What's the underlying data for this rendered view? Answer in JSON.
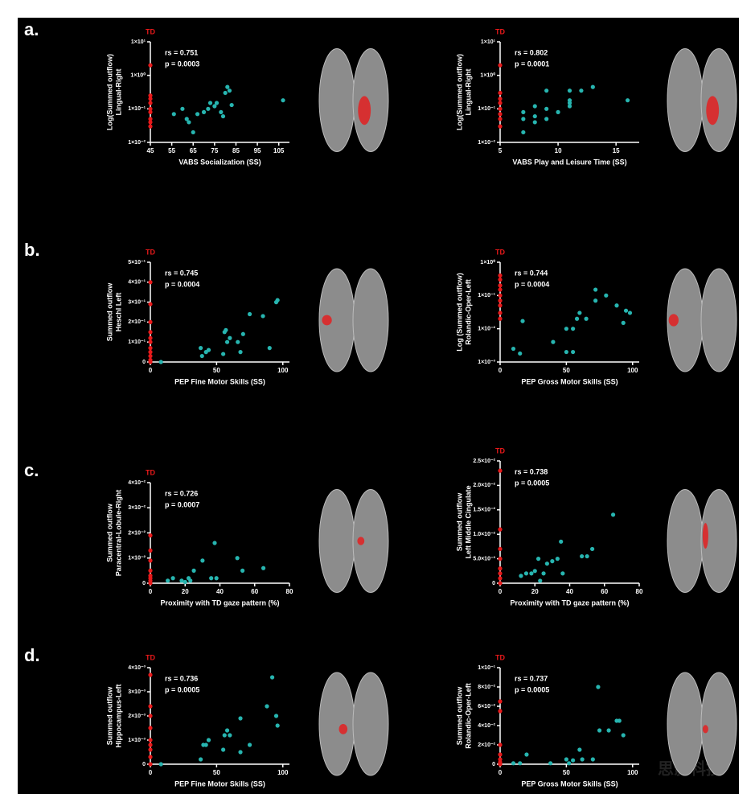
{
  "panel_labels": [
    "a.",
    "b.",
    "c.",
    "d."
  ],
  "watermark": "思影科技",
  "chart_data": [
    {
      "type": "scatter",
      "log_y": true,
      "ylabel": [
        "Log(Summed outflow)",
        "Lingual-Right"
      ],
      "xlabel": "VABS Socialization (SS)",
      "annotations": [
        "rs = 0.751",
        "p = 0.0003"
      ],
      "xlim": [
        45,
        110
      ],
      "xticks": [
        45,
        55,
        65,
        75,
        85,
        95,
        105
      ],
      "ylim": [
        0.01,
        10
      ],
      "yticks": [
        {
          "value": 0.01,
          "label": "1×10⁻²"
        },
        {
          "value": 0.1,
          "label": "1×10⁻¹"
        },
        {
          "value": 1,
          "label": "1×10⁰"
        },
        {
          "value": 10,
          "label": "1×10¹"
        }
      ],
      "series": [
        {
          "name": "TD",
          "color": "#e8191a",
          "x": [
            45,
            45,
            45,
            45,
            45,
            45,
            45,
            45,
            45
          ],
          "values": [
            2,
            0.25,
            0.2,
            0.15,
            0.1,
            0.08,
            0.05,
            0.04,
            0.03
          ]
        },
        {
          "color": "#27b5b0",
          "x": [
            56,
            60,
            62,
            63,
            65,
            67,
            70,
            72,
            73,
            75,
            76,
            78,
            79,
            80,
            81,
            82,
            83,
            107
          ],
          "values": [
            0.07,
            0.1,
            0.05,
            0.04,
            0.02,
            0.07,
            0.08,
            0.1,
            0.15,
            0.12,
            0.15,
            0.08,
            0.06,
            0.3,
            0.45,
            0.35,
            0.13,
            0.18
          ]
        }
      ]
    },
    {
      "type": "scatter",
      "log_y": true,
      "ylabel": [
        "Log(Summed outflow)",
        "Lingual-Right"
      ],
      "xlabel": "VABS Play and Leisure Time (SS)",
      "annotations": [
        "rs = 0.802",
        "p = 0.0001"
      ],
      "xlim": [
        5,
        17
      ],
      "xticks": [
        5,
        10,
        15
      ],
      "ylim": [
        0.01,
        10
      ],
      "yticks": [
        {
          "value": 0.01,
          "label": "1×10⁻²"
        },
        {
          "value": 0.1,
          "label": "1×10⁻¹"
        },
        {
          "value": 1,
          "label": "1×10⁰"
        },
        {
          "value": 10,
          "label": "1×10¹"
        }
      ],
      "series": [
        {
          "name": "TD",
          "color": "#e8191a",
          "x": [
            5,
            5,
            5,
            5,
            5,
            5,
            5,
            5
          ],
          "values": [
            2,
            0.3,
            0.2,
            0.15,
            0.1,
            0.07,
            0.05,
            0.03
          ]
        },
        {
          "color": "#27b5b0",
          "x": [
            7,
            7,
            7,
            8,
            8,
            8,
            9,
            9,
            9,
            10,
            11,
            11,
            11,
            11,
            12,
            13,
            16
          ],
          "values": [
            0.05,
            0.02,
            0.08,
            0.12,
            0.06,
            0.04,
            0.35,
            0.1,
            0.05,
            0.08,
            0.15,
            0.12,
            0.35,
            0.18,
            0.35,
            0.45,
            0.18
          ]
        }
      ]
    },
    {
      "type": "scatter",
      "ylabel": [
        "Summed outflow",
        "Heschl Left"
      ],
      "xlabel": "PEP Fine Motor Skills (SS)",
      "annotations": [
        "rs = 0.745",
        "p = 0.0004"
      ],
      "xlim": [
        0,
        105
      ],
      "xticks": [
        0,
        50,
        100
      ],
      "ylim": [
        0,
        0.5
      ],
      "yticks": [
        0,
        {
          "value": 0.1,
          "label": "1×10⁻¹"
        },
        {
          "value": 0.2,
          "label": "2×10⁻¹"
        },
        {
          "value": 0.3,
          "label": "3×10⁻¹"
        },
        {
          "value": 0.4,
          "label": "4×10⁻¹"
        },
        {
          "value": 0.5,
          "label": "5×10⁻¹"
        }
      ],
      "series": [
        {
          "name": "TD",
          "color": "#e8191a",
          "x": [
            0,
            0,
            0,
            0,
            0,
            0,
            0,
            0,
            0,
            0,
            0
          ],
          "values": [
            0.4,
            0.29,
            0.2,
            0.15,
            0.12,
            0.1,
            0.07,
            0.05,
            0.03,
            0.01,
            0
          ]
        },
        {
          "color": "#27b5b0",
          "x": [
            8,
            38,
            39,
            42,
            44,
            55,
            56,
            57,
            58,
            60,
            66,
            68,
            70,
            75,
            85,
            90,
            95,
            96
          ],
          "values": [
            0,
            0.07,
            0.03,
            0.05,
            0.06,
            0.04,
            0.15,
            0.16,
            0.1,
            0.12,
            0.1,
            0.05,
            0.14,
            0.24,
            0.23,
            0.07,
            0.3,
            0.31
          ]
        }
      ]
    },
    {
      "type": "scatter",
      "log_y": true,
      "ylabel": [
        "Log (Summed outflow)",
        "Rolandic-Oper-Left"
      ],
      "xlabel": "PEP Gross Motor Skills (SS)",
      "annotations": [
        "rs = 0.744",
        "p = 0.0004"
      ],
      "xlim": [
        0,
        105
      ],
      "xticks": [
        0,
        50,
        100
      ],
      "ylim": [
        0.001,
        1
      ],
      "yticks": [
        {
          "value": 0.001,
          "label": "1×10⁻³"
        },
        {
          "value": 0.01,
          "label": "1×10⁻²"
        },
        {
          "value": 0.1,
          "label": "1×10⁻¹"
        },
        {
          "value": 1,
          "label": "1×10⁰"
        }
      ],
      "series": [
        {
          "name": "TD",
          "color": "#e8191a",
          "x": [
            0,
            0,
            0,
            0,
            0,
            0,
            0,
            0,
            0
          ],
          "values": [
            0.4,
            0.3,
            0.2,
            0.15,
            0.1,
            0.07,
            0.05,
            0.03,
            0.02
          ]
        },
        {
          "color": "#27b5b0",
          "x": [
            10,
            15,
            17,
            40,
            50,
            50,
            55,
            55,
            58,
            60,
            65,
            72,
            72,
            80,
            88,
            93,
            95,
            98
          ],
          "values": [
            0.0025,
            0.0018,
            0.017,
            0.004,
            0.01,
            0.002,
            0.002,
            0.01,
            0.02,
            0.03,
            0.02,
            0.15,
            0.07,
            0.1,
            0.05,
            0.015,
            0.035,
            0.03
          ]
        }
      ]
    },
    {
      "type": "scatter",
      "ylabel": [
        "Summed outflow",
        "Paracentral-Lobule-Right"
      ],
      "xlabel": "Proximity with TD gaze pattern (%)",
      "annotations": [
        "rs = 0.726",
        "p = 0.0007"
      ],
      "xlim": [
        0,
        80
      ],
      "xticks": [
        0,
        20,
        40,
        60,
        80
      ],
      "ylim": [
        0,
        0.04
      ],
      "yticks": [
        0,
        {
          "value": 0.01,
          "label": "1×10⁻²"
        },
        {
          "value": 0.02,
          "label": "2×10⁻²"
        },
        {
          "value": 0.03,
          "label": "3×10⁻²"
        },
        {
          "value": 0.04,
          "label": "4×10⁻²"
        }
      ],
      "series": [
        {
          "name": "TD",
          "color": "#e8191a",
          "x": [
            0,
            0,
            0,
            0,
            0,
            0,
            0,
            0
          ],
          "values": [
            0.019,
            0.013,
            0.009,
            0.005,
            0.003,
            0.002,
            0.001,
            0
          ]
        },
        {
          "color": "#27b5b0",
          "x": [
            10,
            13,
            18,
            20,
            22,
            23,
            25,
            30,
            35,
            37,
            38,
            50,
            53,
            65
          ],
          "values": [
            0.001,
            0.002,
            0.001,
            0.0005,
            0.002,
            0.001,
            0.005,
            0.009,
            0.002,
            0.016,
            0.002,
            0.01,
            0.005,
            0.006
          ]
        }
      ]
    },
    {
      "type": "scatter",
      "ylabel": [
        "Summed outflow",
        "Left Middle Cingulate"
      ],
      "xlabel": "Proximity with TD gaze pattern (%)",
      "annotations": [
        "rs = 0.738",
        "p = 0.0005"
      ],
      "xlim": [
        0,
        80
      ],
      "xticks": [
        0,
        20,
        40,
        60,
        80
      ],
      "ylim": [
        0,
        0.025
      ],
      "yticks": [
        0,
        {
          "value": 0.005,
          "label": "5.0×10⁻³"
        },
        {
          "value": 0.01,
          "label": "1.0×10⁻²"
        },
        {
          "value": 0.015,
          "label": "1.5×10⁻²"
        },
        {
          "value": 0.02,
          "label": "2.0×10⁻²"
        },
        {
          "value": 0.025,
          "label": "2.5×10⁻²"
        }
      ],
      "series": [
        {
          "name": "TD",
          "color": "#e8191a",
          "x": [
            0,
            0,
            0,
            0,
            0,
            0,
            0,
            0
          ],
          "values": [
            0.023,
            0.011,
            0.007,
            0.005,
            0.003,
            0.002,
            0.001,
            0
          ]
        },
        {
          "color": "#27b5b0",
          "x": [
            12,
            15,
            18,
            20,
            22,
            23,
            25,
            27,
            30,
            33,
            35,
            36,
            47,
            50,
            53,
            65
          ],
          "values": [
            0.0015,
            0.002,
            0.002,
            0.0025,
            0.005,
            0.0005,
            0.002,
            0.004,
            0.0045,
            0.005,
            0.0085,
            0.002,
            0.0055,
            0.0055,
            0.007,
            0.014
          ]
        }
      ]
    },
    {
      "type": "scatter",
      "ylabel": [
        "Summed outflow",
        "Hippocampus-Left"
      ],
      "xlabel": "PEP Fine Motor Skills (SS)",
      "annotations": [
        "rs = 0.736",
        "p = 0.0005"
      ],
      "xlim": [
        0,
        105
      ],
      "xticks": [
        0,
        50,
        100
      ],
      "ylim": [
        0,
        0.004
      ],
      "yticks": [
        0,
        {
          "value": 0.001,
          "label": "1×10⁻³"
        },
        {
          "value": 0.002,
          "label": "2×10⁻³"
        },
        {
          "value": 0.003,
          "label": "3×10⁻³"
        },
        {
          "value": 0.004,
          "label": "4×10⁻³"
        }
      ],
      "series": [
        {
          "name": "TD",
          "color": "#e8191a",
          "x": [
            0,
            0,
            0,
            0,
            0,
            0,
            0,
            0,
            0
          ],
          "values": [
            0.0037,
            0.0024,
            0.002,
            0.0015,
            0.001,
            0.0008,
            0.0006,
            0.0003,
            0
          ]
        },
        {
          "color": "#27b5b0",
          "x": [
            8,
            38,
            40,
            42,
            44,
            55,
            56,
            58,
            60,
            68,
            68,
            75,
            88,
            92,
            95,
            96
          ],
          "values": [
            0,
            0.0002,
            0.0008,
            0.0008,
            0.001,
            0.0006,
            0.0012,
            0.0014,
            0.0012,
            0.0005,
            0.0019,
            0.0008,
            0.0024,
            0.0036,
            0.002,
            0.0016
          ]
        }
      ]
    },
    {
      "type": "scatter",
      "ylabel": [
        "Summed outflow",
        "Rolandic-Oper-Left"
      ],
      "xlabel": "PEP Gross Motor Skills (SS)",
      "annotations": [
        "rs = 0.737",
        "p = 0.0005"
      ],
      "xlim": [
        0,
        105
      ],
      "xticks": [
        0,
        50,
        100
      ],
      "ylim": [
        0,
        0.1
      ],
      "yticks": [
        0,
        {
          "value": 0.02,
          "label": "2×10⁻²"
        },
        {
          "value": 0.04,
          "label": "4×10⁻²"
        },
        {
          "value": 0.06,
          "label": "6×10⁻²"
        },
        {
          "value": 0.08,
          "label": "8×10⁻²"
        },
        {
          "value": 0.1,
          "label": "1×10⁻¹"
        }
      ],
      "series": [
        {
          "name": "TD",
          "color": "#e8191a",
          "x": [
            0,
            0,
            0,
            0,
            0,
            0,
            0
          ],
          "values": [
            0.065,
            0.055,
            0.02,
            0.01,
            0.005,
            0.002,
            0
          ]
        },
        {
          "color": "#27b5b0",
          "x": [
            10,
            15,
            20,
            38,
            50,
            52,
            55,
            60,
            62,
            70,
            75,
            82,
            88,
            90,
            93,
            74
          ],
          "values": [
            0.001,
            0.001,
            0.01,
            0.001,
            0.005,
            0.001,
            0.004,
            0.015,
            0.005,
            0.005,
            0.035,
            0.035,
            0.045,
            0.045,
            0.03,
            0.08
          ]
        }
      ]
    }
  ]
}
